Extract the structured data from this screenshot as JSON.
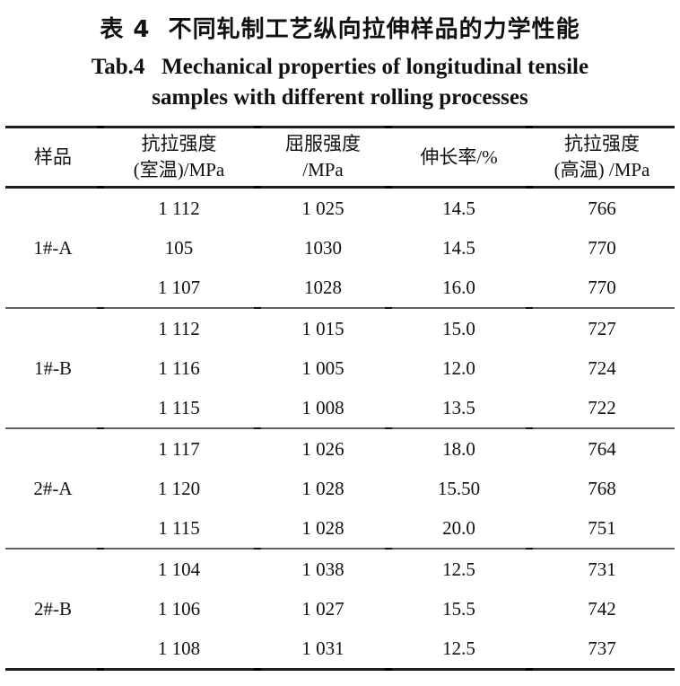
{
  "title": {
    "zh": "表 4  不同轧制工艺纵向拉伸样品的力学性能",
    "en_line1": "Tab.4   Mechanical properties of longitudinal tensile",
    "en_line2": "samples with different rolling processes"
  },
  "table": {
    "headers": {
      "sample": "样品",
      "tensile_rt_line1": "抗拉强度",
      "tensile_rt_line2": "(室温)/MPa",
      "yield_line1": "屈服强度",
      "yield_line2": "/MPa",
      "elongation": "伸长率/%",
      "tensile_ht_line1": "抗拉强度",
      "tensile_ht_line2": "(高温) /MPa"
    },
    "groups": [
      {
        "sample": "1#-A",
        "rows": [
          [
            "1 112",
            "1 025",
            "14.5",
            "766"
          ],
          [
            "105",
            "1030",
            "14.5",
            "770"
          ],
          [
            "1 107",
            "1028",
            "16.0",
            "770"
          ]
        ]
      },
      {
        "sample": "1#-B",
        "rows": [
          [
            "1 112",
            "1 015",
            "15.0",
            "727"
          ],
          [
            "1 116",
            "1 005",
            "12.0",
            "724"
          ],
          [
            "1 115",
            "1 008",
            "13.5",
            "722"
          ]
        ]
      },
      {
        "sample": "2#-A",
        "rows": [
          [
            "1 117",
            "1 026",
            "18.0",
            "764"
          ],
          [
            "1 120",
            "1 028",
            "15.50",
            "768"
          ],
          [
            "1 115",
            "1 028",
            "20.0",
            "751"
          ]
        ]
      },
      {
        "sample": "2#-B",
        "rows": [
          [
            "1 104",
            "1 038",
            "12.5",
            "731"
          ],
          [
            "1 106",
            "1 027",
            "15.5",
            "742"
          ],
          [
            "1 108",
            "1 031",
            "12.5",
            "737"
          ]
        ]
      }
    ]
  },
  "colors": {
    "text": "#111111",
    "background": "#ffffff"
  }
}
